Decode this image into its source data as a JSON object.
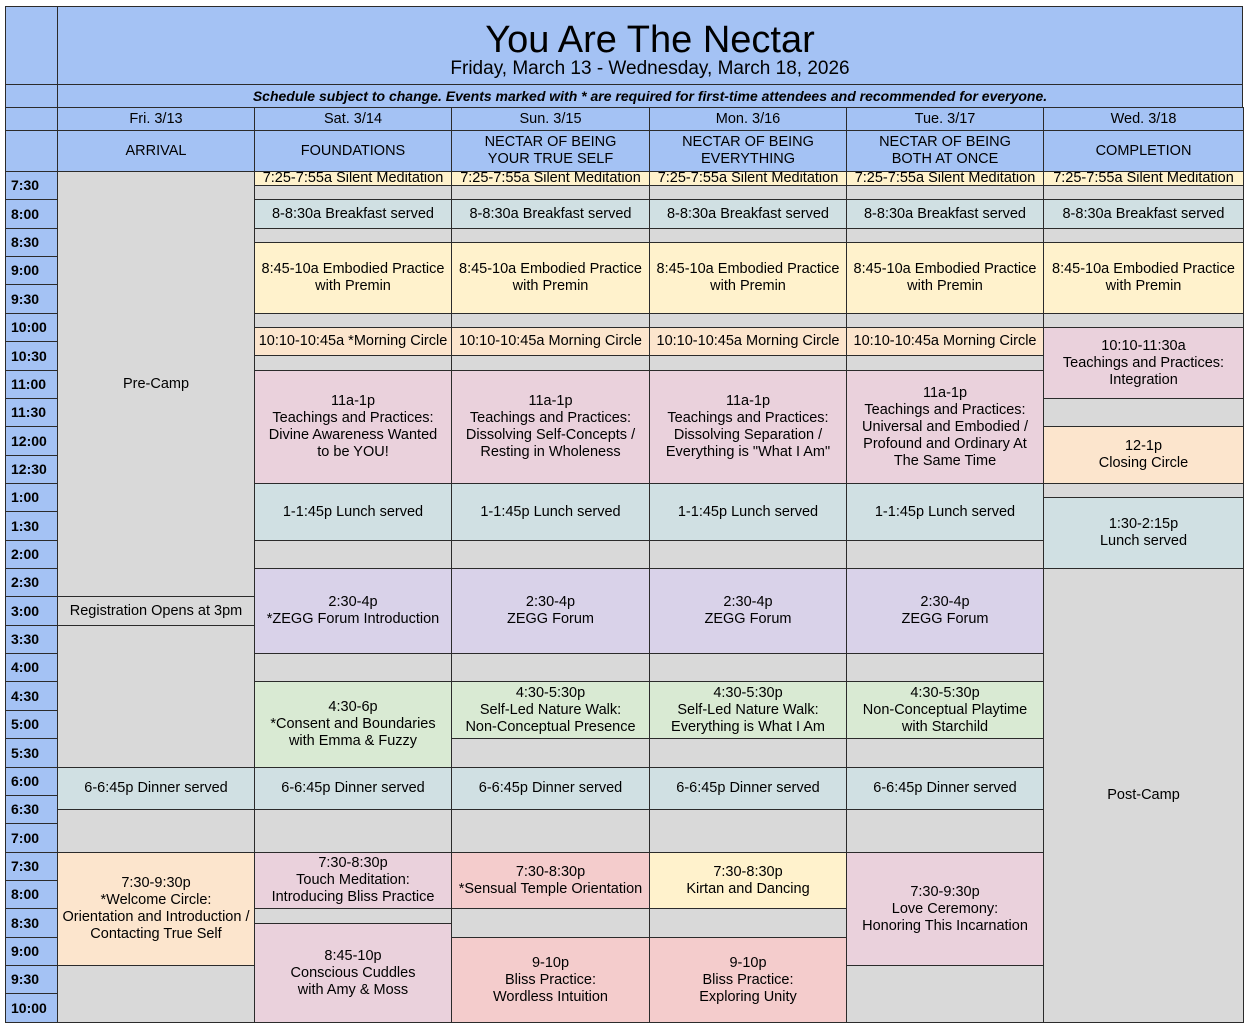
{
  "title": "You Are The Nectar",
  "subtitle": "Friday, March 13 - Wednesday, March 18, 2026",
  "note": "Schedule subject to change.  Events marked with * are required for first-time attendees and recommended for everyone.",
  "days": [
    {
      "date": "Fri. 3/13",
      "theme": [
        "ARRIVAL"
      ]
    },
    {
      "date": "Sat. 3/14",
      "theme": [
        "FOUNDATIONS"
      ]
    },
    {
      "date": "Sun. 3/15",
      "theme": [
        "NECTAR OF BEING",
        "YOUR TRUE SELF"
      ]
    },
    {
      "date": "Mon. 3/16",
      "theme": [
        "NECTAR OF BEING",
        "EVERYTHING"
      ]
    },
    {
      "date": "Tue. 3/17",
      "theme": [
        "NECTAR OF BEING",
        "BOTH AT ONCE"
      ]
    },
    {
      "date": "Wed. 3/18",
      "theme": [
        "COMPLETION"
      ]
    }
  ],
  "times": [
    "7:30",
    "8:00",
    "8:30",
    "9:00",
    "9:30",
    "10:00",
    "10:30",
    "11:00",
    "11:30",
    "12:00",
    "12:30",
    "1:00",
    "1:30",
    "2:00",
    "2:30",
    "3:00",
    "3:30",
    "4:00",
    "4:30",
    "5:00",
    "5:30",
    "6:00",
    "6:30",
    "7:00",
    "7:30",
    "8:00",
    "8:30",
    "9:00",
    "9:30",
    "10:00"
  ],
  "events": [
    {
      "day": 0,
      "start": 0,
      "span": 15,
      "color": "gray",
      "lines": [
        "Pre-Camp"
      ]
    },
    {
      "day": 0,
      "start": 15,
      "span": 1,
      "color": "gray",
      "lines": [
        "Registration Opens at 3pm"
      ]
    },
    {
      "day": 0,
      "start": 16,
      "span": 5,
      "color": "gray",
      "lines": []
    },
    {
      "day": 0,
      "start": 21,
      "span": 1.5,
      "color": "blue",
      "lines": [
        "6-6:45p Dinner served"
      ]
    },
    {
      "day": 0,
      "start": 22.5,
      "span": 1.5,
      "color": "gray",
      "lines": []
    },
    {
      "day": 0,
      "start": 24,
      "span": 4,
      "color": "orange",
      "lines": [
        "7:30-9:30p",
        "*Welcome Circle:",
        "Orientation and Introduction /",
        "Contacting True Self"
      ]
    },
    {
      "day": 0,
      "start": 28,
      "span": 2,
      "color": "gray",
      "lines": []
    },
    {
      "day": 1,
      "start": 0,
      "span": 0.5,
      "color": "yellow",
      "lines": [
        "7:25-7:55a Silent Meditation"
      ]
    },
    {
      "day": 1,
      "start": 0.5,
      "span": 0.5,
      "color": "gray",
      "lines": []
    },
    {
      "day": 1,
      "start": 1,
      "span": 1,
      "color": "blue",
      "lines": [
        "8-8:30a Breakfast served"
      ]
    },
    {
      "day": 1,
      "start": 2,
      "span": 0.5,
      "color": "gray",
      "lines": []
    },
    {
      "day": 1,
      "start": 2.5,
      "span": 2.5,
      "color": "yellow",
      "lines": [
        "8:45-10a Embodied Practice",
        "with Premin"
      ]
    },
    {
      "day": 1,
      "start": 5,
      "span": 0.5,
      "color": "gray",
      "lines": []
    },
    {
      "day": 1,
      "start": 5.5,
      "span": 1,
      "color": "orange",
      "lines": [
        "10:10-10:45a *Morning Circle"
      ]
    },
    {
      "day": 1,
      "start": 6.5,
      "span": 0.5,
      "color": "gray",
      "lines": []
    },
    {
      "day": 1,
      "start": 7,
      "span": 4,
      "color": "pink",
      "lines": [
        "11a-1p",
        "Teachings and Practices:",
        "Divine Awareness Wanted",
        "to be YOU!"
      ]
    },
    {
      "day": 1,
      "start": 11,
      "span": 2,
      "color": "blue",
      "lines": [
        "1-1:45p Lunch served"
      ]
    },
    {
      "day": 1,
      "start": 13,
      "span": 1,
      "color": "gray",
      "lines": []
    },
    {
      "day": 1,
      "start": 14,
      "span": 3,
      "color": "purple",
      "lines": [
        "2:30-4p",
        "*ZEGG Forum Introduction"
      ]
    },
    {
      "day": 1,
      "start": 17,
      "span": 1,
      "color": "gray",
      "lines": []
    },
    {
      "day": 1,
      "start": 18,
      "span": 3,
      "color": "green",
      "lines": [
        "4:30-6p",
        "*Consent and Boundaries",
        "with Emma & Fuzzy"
      ]
    },
    {
      "day": 1,
      "start": 21,
      "span": 1.5,
      "color": "blue",
      "lines": [
        "6-6:45p Dinner served"
      ]
    },
    {
      "day": 1,
      "start": 22.5,
      "span": 1.5,
      "color": "gray",
      "lines": []
    },
    {
      "day": 1,
      "start": 24,
      "span": 2,
      "color": "pink",
      "lines": [
        "7:30-8:30p",
        "Touch Meditation:",
        "Introducing Bliss Practice"
      ]
    },
    {
      "day": 1,
      "start": 26,
      "span": 0.5,
      "color": "gray",
      "lines": []
    },
    {
      "day": 1,
      "start": 26.5,
      "span": 3.5,
      "color": "pink",
      "lines": [
        "8:45-10p",
        "Conscious Cuddles",
        "with Amy & Moss"
      ]
    },
    {
      "day": 2,
      "start": 0,
      "span": 0.5,
      "color": "yellow",
      "lines": [
        "7:25-7:55a Silent Meditation"
      ]
    },
    {
      "day": 2,
      "start": 0.5,
      "span": 0.5,
      "color": "gray",
      "lines": []
    },
    {
      "day": 2,
      "start": 1,
      "span": 1,
      "color": "blue",
      "lines": [
        "8-8:30a Breakfast served"
      ]
    },
    {
      "day": 2,
      "start": 2,
      "span": 0.5,
      "color": "gray",
      "lines": []
    },
    {
      "day": 2,
      "start": 2.5,
      "span": 2.5,
      "color": "yellow",
      "lines": [
        "8:45-10a Embodied Practice",
        "with Premin"
      ]
    },
    {
      "day": 2,
      "start": 5,
      "span": 0.5,
      "color": "gray",
      "lines": []
    },
    {
      "day": 2,
      "start": 5.5,
      "span": 1,
      "color": "orange",
      "lines": [
        "10:10-10:45a Morning Circle"
      ]
    },
    {
      "day": 2,
      "start": 6.5,
      "span": 0.5,
      "color": "gray",
      "lines": []
    },
    {
      "day": 2,
      "start": 7,
      "span": 4,
      "color": "pink",
      "lines": [
        "11a-1p",
        "Teachings and Practices:",
        "Dissolving Self-Concepts /",
        "Resting in Wholeness"
      ]
    },
    {
      "day": 2,
      "start": 11,
      "span": 2,
      "color": "blue",
      "lines": [
        "1-1:45p Lunch served"
      ]
    },
    {
      "day": 2,
      "start": 13,
      "span": 1,
      "color": "gray",
      "lines": []
    },
    {
      "day": 2,
      "start": 14,
      "span": 3,
      "color": "purple",
      "lines": [
        "2:30-4p",
        "ZEGG Forum"
      ]
    },
    {
      "day": 2,
      "start": 17,
      "span": 1,
      "color": "gray",
      "lines": []
    },
    {
      "day": 2,
      "start": 18,
      "span": 2,
      "color": "green",
      "lines": [
        "4:30-5:30p",
        "Self-Led Nature Walk:",
        "Non-Conceptual Presence"
      ]
    },
    {
      "day": 2,
      "start": 20,
      "span": 1,
      "color": "gray",
      "lines": []
    },
    {
      "day": 2,
      "start": 21,
      "span": 1.5,
      "color": "blue",
      "lines": [
        "6-6:45p Dinner served"
      ]
    },
    {
      "day": 2,
      "start": 22.5,
      "span": 1.5,
      "color": "gray",
      "lines": []
    },
    {
      "day": 2,
      "start": 24,
      "span": 2,
      "color": "red",
      "lines": [
        "7:30-8:30p",
        "*Sensual Temple Orientation"
      ]
    },
    {
      "day": 2,
      "start": 26,
      "span": 1,
      "color": "gray",
      "lines": []
    },
    {
      "day": 2,
      "start": 27,
      "span": 3,
      "color": "red",
      "lines": [
        "9-10p",
        "Bliss Practice:",
        "Wordless Intuition"
      ]
    },
    {
      "day": 3,
      "start": 0,
      "span": 0.5,
      "color": "yellow",
      "lines": [
        "7:25-7:55a Silent Meditation"
      ]
    },
    {
      "day": 3,
      "start": 0.5,
      "span": 0.5,
      "color": "gray",
      "lines": []
    },
    {
      "day": 3,
      "start": 1,
      "span": 1,
      "color": "blue",
      "lines": [
        "8-8:30a Breakfast served"
      ]
    },
    {
      "day": 3,
      "start": 2,
      "span": 0.5,
      "color": "gray",
      "lines": []
    },
    {
      "day": 3,
      "start": 2.5,
      "span": 2.5,
      "color": "yellow",
      "lines": [
        "8:45-10a Embodied Practice",
        "with Premin"
      ]
    },
    {
      "day": 3,
      "start": 5,
      "span": 0.5,
      "color": "gray",
      "lines": []
    },
    {
      "day": 3,
      "start": 5.5,
      "span": 1,
      "color": "orange",
      "lines": [
        "10:10-10:45a Morning Circle"
      ]
    },
    {
      "day": 3,
      "start": 6.5,
      "span": 0.5,
      "color": "gray",
      "lines": []
    },
    {
      "day": 3,
      "start": 7,
      "span": 4,
      "color": "pink",
      "lines": [
        "11a-1p",
        "Teachings and Practices:",
        "Dissolving Separation /",
        "Everything is \"What I Am\""
      ]
    },
    {
      "day": 3,
      "start": 11,
      "span": 2,
      "color": "blue",
      "lines": [
        "1-1:45p Lunch served"
      ]
    },
    {
      "day": 3,
      "start": 13,
      "span": 1,
      "color": "gray",
      "lines": []
    },
    {
      "day": 3,
      "start": 14,
      "span": 3,
      "color": "purple",
      "lines": [
        "2:30-4p",
        "ZEGG Forum"
      ]
    },
    {
      "day": 3,
      "start": 17,
      "span": 1,
      "color": "gray",
      "lines": []
    },
    {
      "day": 3,
      "start": 18,
      "span": 2,
      "color": "green",
      "lines": [
        "4:30-5:30p",
        "Self-Led Nature Walk:",
        "Everything is What I Am"
      ]
    },
    {
      "day": 3,
      "start": 20,
      "span": 1,
      "color": "gray",
      "lines": []
    },
    {
      "day": 3,
      "start": 21,
      "span": 1.5,
      "color": "blue",
      "lines": [
        "6-6:45p Dinner served"
      ]
    },
    {
      "day": 3,
      "start": 22.5,
      "span": 1.5,
      "color": "gray",
      "lines": []
    },
    {
      "day": 3,
      "start": 24,
      "span": 2,
      "color": "yellow",
      "lines": [
        "7:30-8:30p",
        "Kirtan and Dancing"
      ]
    },
    {
      "day": 3,
      "start": 26,
      "span": 1,
      "color": "gray",
      "lines": []
    },
    {
      "day": 3,
      "start": 27,
      "span": 3,
      "color": "red",
      "lines": [
        "9-10p",
        "Bliss Practice:",
        "Exploring Unity"
      ]
    },
    {
      "day": 4,
      "start": 0,
      "span": 0.5,
      "color": "yellow",
      "lines": [
        "7:25-7:55a Silent Meditation"
      ]
    },
    {
      "day": 4,
      "start": 0.5,
      "span": 0.5,
      "color": "gray",
      "lines": []
    },
    {
      "day": 4,
      "start": 1,
      "span": 1,
      "color": "blue",
      "lines": [
        "8-8:30a Breakfast served"
      ]
    },
    {
      "day": 4,
      "start": 2,
      "span": 0.5,
      "color": "gray",
      "lines": []
    },
    {
      "day": 4,
      "start": 2.5,
      "span": 2.5,
      "color": "yellow",
      "lines": [
        "8:45-10a Embodied Practice",
        "with Premin"
      ]
    },
    {
      "day": 4,
      "start": 5,
      "span": 0.5,
      "color": "gray",
      "lines": []
    },
    {
      "day": 4,
      "start": 5.5,
      "span": 1,
      "color": "orange",
      "lines": [
        "10:10-10:45a Morning Circle"
      ]
    },
    {
      "day": 4,
      "start": 6.5,
      "span": 0.5,
      "color": "gray",
      "lines": []
    },
    {
      "day": 4,
      "start": 7,
      "span": 4,
      "color": "pink",
      "lines": [
        "11a-1p",
        "Teachings and Practices:",
        "Universal and Embodied /",
        "Profound and Ordinary At",
        "The Same Time"
      ]
    },
    {
      "day": 4,
      "start": 11,
      "span": 2,
      "color": "blue",
      "lines": [
        "1-1:45p Lunch served"
      ]
    },
    {
      "day": 4,
      "start": 13,
      "span": 1,
      "color": "gray",
      "lines": []
    },
    {
      "day": 4,
      "start": 14,
      "span": 3,
      "color": "purple",
      "lines": [
        "2:30-4p",
        "ZEGG Forum"
      ]
    },
    {
      "day": 4,
      "start": 17,
      "span": 1,
      "color": "gray",
      "lines": []
    },
    {
      "day": 4,
      "start": 18,
      "span": 2,
      "color": "green",
      "lines": [
        "4:30-5:30p",
        "Non-Conceptual Playtime",
        "with Starchild"
      ]
    },
    {
      "day": 4,
      "start": 20,
      "span": 1,
      "color": "gray",
      "lines": []
    },
    {
      "day": 4,
      "start": 21,
      "span": 1.5,
      "color": "blue",
      "lines": [
        "6-6:45p Dinner served"
      ]
    },
    {
      "day": 4,
      "start": 22.5,
      "span": 1.5,
      "color": "gray",
      "lines": []
    },
    {
      "day": 4,
      "start": 24,
      "span": 4,
      "color": "pink",
      "lines": [
        "7:30-9:30p",
        "Love Ceremony:",
        "Honoring This Incarnation"
      ]
    },
    {
      "day": 4,
      "start": 28,
      "span": 2,
      "color": "gray",
      "lines": []
    },
    {
      "day": 5,
      "start": 0,
      "span": 0.5,
      "color": "yellow",
      "lines": [
        "7:25-7:55a Silent Meditation"
      ]
    },
    {
      "day": 5,
      "start": 0.5,
      "span": 0.5,
      "color": "gray",
      "lines": []
    },
    {
      "day": 5,
      "start": 1,
      "span": 1,
      "color": "blue",
      "lines": [
        "8-8:30a Breakfast served"
      ]
    },
    {
      "day": 5,
      "start": 2,
      "span": 0.5,
      "color": "gray",
      "lines": []
    },
    {
      "day": 5,
      "start": 2.5,
      "span": 2.5,
      "color": "yellow",
      "lines": [
        "8:45-10a Embodied Practice",
        "with Premin"
      ]
    },
    {
      "day": 5,
      "start": 5,
      "span": 0.5,
      "color": "gray",
      "lines": []
    },
    {
      "day": 5,
      "start": 5.5,
      "span": 2.5,
      "color": "pink",
      "lines": [
        "10:10-11:30a",
        "Teachings and Practices:",
        "Integration"
      ]
    },
    {
      "day": 5,
      "start": 8,
      "span": 1,
      "color": "gray",
      "lines": []
    },
    {
      "day": 5,
      "start": 9,
      "span": 2,
      "color": "orange",
      "lines": [
        "12-1p",
        "Closing Circle"
      ]
    },
    {
      "day": 5,
      "start": 11,
      "span": 0.5,
      "color": "gray",
      "lines": []
    },
    {
      "day": 5,
      "start": 11.5,
      "span": 2.5,
      "color": "blue",
      "lines": [
        "1:30-2:15p",
        "Lunch served"
      ]
    },
    {
      "day": 5,
      "start": 14,
      "span": 16,
      "color": "gray",
      "lines": [
        "Post-Camp"
      ]
    }
  ]
}
